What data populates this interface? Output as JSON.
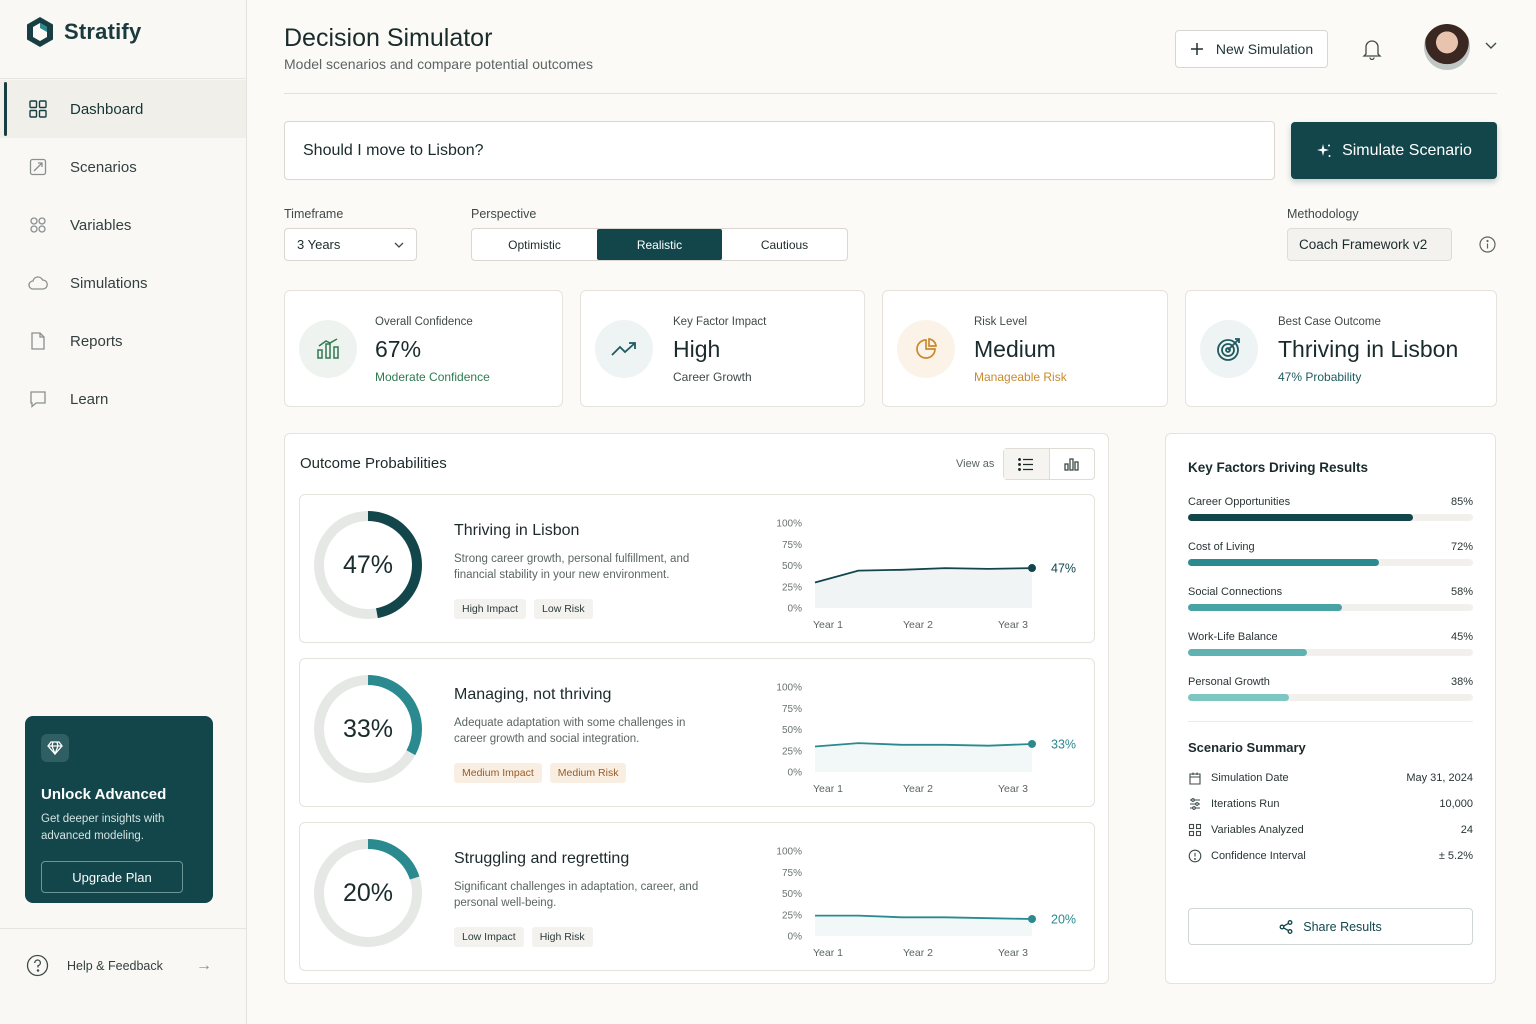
{
  "app": {
    "name": "Stratify"
  },
  "sidebar": {
    "items": [
      {
        "label": "Dashboard",
        "icon": "grid-icon",
        "active": true
      },
      {
        "label": "Scenarios",
        "icon": "scenario-icon",
        "active": false
      },
      {
        "label": "Variables",
        "icon": "variables-icon",
        "active": false
      },
      {
        "label": "Simulations",
        "icon": "cloud-icon",
        "active": false
      },
      {
        "label": "Reports",
        "icon": "document-icon",
        "active": false
      },
      {
        "label": "Learn",
        "icon": "chat-icon",
        "active": false
      }
    ],
    "upgrade": {
      "title": "Unlock Advanced",
      "description": "Get deeper insights with advanced modeling.",
      "button": "Upgrade Plan"
    },
    "help": "Help & Feedback"
  },
  "header": {
    "title": "Decision Simulator",
    "subtitle": "Model scenarios and compare potential outcomes",
    "new_simulation": "New Simulation"
  },
  "query": {
    "value": "Should I move to Lisbon?",
    "button": "Simulate Scenario"
  },
  "controls": {
    "timeframe_label": "Timeframe",
    "timeframe_value": "3 Years",
    "perspective_label": "Perspective",
    "perspectives": [
      "Optimistic",
      "Realistic",
      "Cautious"
    ],
    "perspective_selected": "Realistic",
    "methodology_label": "Methodology",
    "methodology_value": "Coach Framework v2"
  },
  "kpis": [
    {
      "label": "Overall Confidence",
      "value": "67%",
      "sub": "Moderate Confidence",
      "sub_color": "#2f7a4f"
    },
    {
      "label": "Key Factor Impact",
      "value": "High",
      "sub": "Career Growth",
      "sub_color": "#3f4a49"
    },
    {
      "label": "Risk Level",
      "value": "Medium",
      "sub": "Manageable Risk",
      "sub_color": "#c98a2e"
    },
    {
      "label": "Best Case Outcome",
      "value": "Thriving in Lisbon",
      "sub": "47% Probability",
      "sub_color": "#1f5b5f"
    }
  ],
  "outcomes": {
    "title": "Outcome Probabilities",
    "view_as": "View as",
    "y_ticks": [
      "100%",
      "75%",
      "50%",
      "25%",
      "0%"
    ],
    "x_ticks": [
      "Year 1",
      "Year 2",
      "Year 3"
    ],
    "items": [
      {
        "pct": "47%",
        "value": 47,
        "title": "Thriving in Lisbon",
        "desc": "Strong career growth, personal fulfillment, and financial stability in your new environment.",
        "tags": [
          {
            "text": "High Impact",
            "warn": false
          },
          {
            "text": "Low Risk",
            "warn": false
          }
        ],
        "color": "#12464b",
        "series": [
          30,
          44,
          45,
          47,
          46,
          47
        ],
        "end_label": "47%"
      },
      {
        "pct": "33%",
        "value": 33,
        "title": "Managing, not thriving",
        "desc": "Adequate adaptation with some challenges in career growth and social integration.",
        "tags": [
          {
            "text": "Medium Impact",
            "warn": true
          },
          {
            "text": "Medium Risk",
            "warn": true
          }
        ],
        "color": "#2a8a8f",
        "series": [
          30,
          34,
          32,
          32,
          31,
          33
        ],
        "end_label": "33%"
      },
      {
        "pct": "20%",
        "value": 20,
        "title": "Struggling and regretting",
        "desc": "Significant challenges in adaptation, career, and personal well-being.",
        "tags": [
          {
            "text": "Low Impact",
            "warn": false
          },
          {
            "text": "High Risk",
            "warn": false
          }
        ],
        "color": "#2a8a8f",
        "series": [
          24,
          24,
          22,
          22,
          21,
          20
        ],
        "end_label": "20%"
      }
    ]
  },
  "factors": {
    "title": "Key Factors Driving Results",
    "items": [
      {
        "label": "Career Opportunities",
        "value": "85%",
        "pct": 0.85,
        "color": "#12464b"
      },
      {
        "label": "Cost of Living",
        "value": "72%",
        "pct": 0.72,
        "color": "#2a8a8f"
      },
      {
        "label": "Social Connections",
        "value": "58%",
        "pct": 0.58,
        "color": "#47a3a4"
      },
      {
        "label": "Work-Life Balance",
        "value": "45%",
        "pct": 0.45,
        "color": "#5eb3b2"
      },
      {
        "label": "Personal Growth",
        "value": "38%",
        "pct": 0.38,
        "color": "#7ec6c2"
      }
    ]
  },
  "summary": {
    "title": "Scenario Summary",
    "rows": [
      {
        "label": "Simulation Date",
        "value": "May 31, 2024",
        "icon": "calendar-icon"
      },
      {
        "label": "Iterations Run",
        "value": "10,000",
        "icon": "iterations-icon"
      },
      {
        "label": "Variables Analyzed",
        "value": "24",
        "icon": "variables-icon"
      },
      {
        "label": "Confidence Interval",
        "value": "± 5.2%",
        "icon": "clock-icon"
      }
    ],
    "share": "Share Results"
  }
}
